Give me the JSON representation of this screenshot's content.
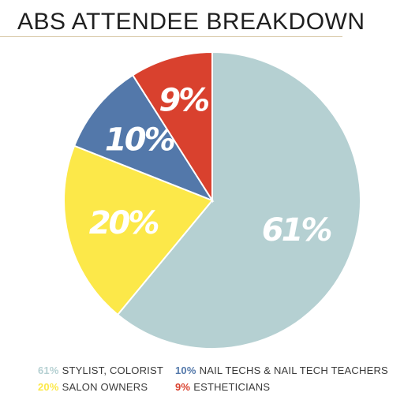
{
  "page": {
    "background": "#ffffff"
  },
  "chart_data": {
    "type": "pie",
    "title": "ABS ATTENDEE BREAKDOWN",
    "slices": [
      {
        "label": "STYLIST, COLORIST",
        "percent_label": "61%",
        "value": 61,
        "color": "#b5d0d2"
      },
      {
        "label": "SALON OWNERS",
        "percent_label": "20%",
        "value": 20,
        "color": "#fce849"
      },
      {
        "label": "NAIL TECHS & NAIL TECH TEACHERS",
        "percent_label": "10%",
        "value": 10,
        "color": "#5378aa"
      },
      {
        "label": "ESTHETICIANS",
        "percent_label": "9%",
        "value": 9,
        "color": "#d9412e"
      }
    ],
    "legend_placement": "bottom"
  }
}
